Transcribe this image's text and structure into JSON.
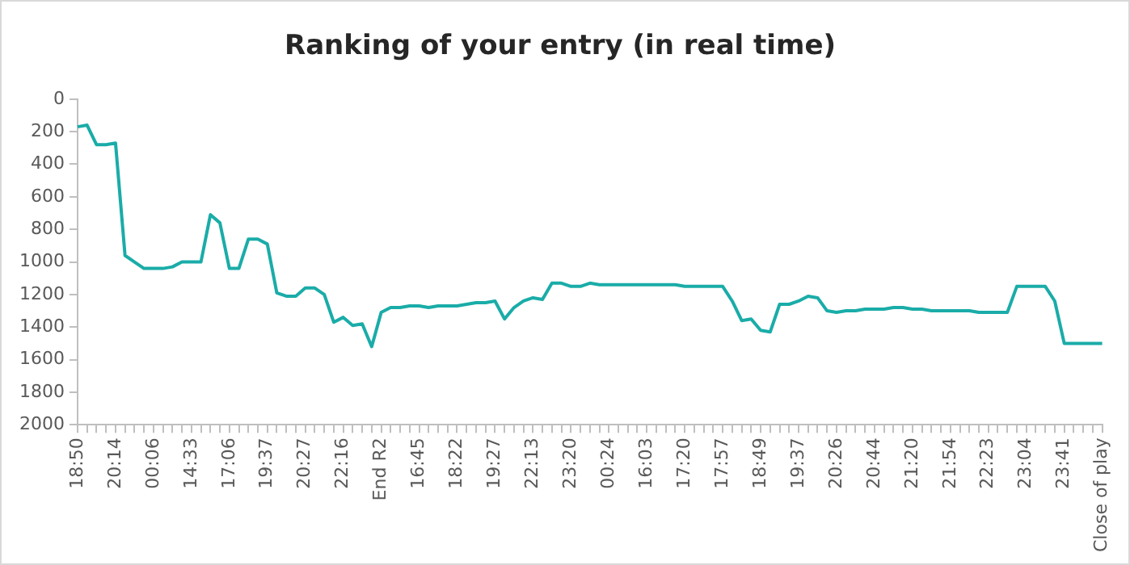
{
  "chart_data": {
    "type": "line",
    "title": "Ranking of your entry (in real time)",
    "categories": [
      "18:50",
      null,
      null,
      null,
      "20:14",
      null,
      null,
      null,
      "00:06",
      null,
      null,
      null,
      "14:33",
      null,
      null,
      null,
      "17:06",
      null,
      null,
      null,
      "19:37",
      null,
      null,
      null,
      "20:27",
      null,
      null,
      null,
      "22:16",
      null,
      null,
      null,
      "End R2",
      null,
      null,
      null,
      "16:45",
      null,
      null,
      null,
      "18:22",
      null,
      null,
      null,
      "19:27",
      null,
      null,
      null,
      "22:13",
      null,
      null,
      null,
      "23:20",
      null,
      null,
      null,
      "00:24",
      null,
      null,
      null,
      "16:03",
      null,
      null,
      null,
      "17:20",
      null,
      null,
      null,
      "17:57",
      null,
      null,
      null,
      "18:49",
      null,
      null,
      null,
      "19:37",
      null,
      null,
      null,
      "20:26",
      null,
      null,
      null,
      "20:44",
      null,
      null,
      null,
      "21:20",
      null,
      null,
      null,
      "21:54",
      null,
      null,
      null,
      "22:23",
      null,
      null,
      null,
      "23:04",
      null,
      null,
      null,
      "23:41",
      null,
      null,
      null,
      "Close of play"
    ],
    "series": [
      {
        "color": "#1aaca8",
        "values": [
          170,
          160,
          280,
          280,
          270,
          960,
          1000,
          1040,
          1040,
          1040,
          1030,
          1000,
          1000,
          1000,
          710,
          760,
          1040,
          1040,
          860,
          860,
          890,
          1190,
          1210,
          1210,
          1160,
          1160,
          1200,
          1370,
          1340,
          1390,
          1380,
          1520,
          1310,
          1280,
          1280,
          1270,
          1270,
          1280,
          1270,
          1270,
          1270,
          1260,
          1250,
          1250,
          1240,
          1350,
          1280,
          1240,
          1220,
          1230,
          1130,
          1130,
          1150,
          1150,
          1130,
          1140,
          1140,
          1140,
          1140,
          1140,
          1140,
          1140,
          1140,
          1140,
          1150,
          1150,
          1150,
          1150,
          1150,
          1240,
          1360,
          1350,
          1420,
          1430,
          1260,
          1260,
          1240,
          1210,
          1220,
          1300,
          1310,
          1300,
          1300,
          1290,
          1290,
          1290,
          1280,
          1280,
          1290,
          1290,
          1300,
          1300,
          1300,
          1300,
          1300,
          1310,
          1310,
          1310,
          1310,
          1150,
          1150,
          1150,
          1150,
          1240,
          1500,
          1500,
          1500,
          1500,
          1500
        ]
      }
    ],
    "ylim": [
      2000,
      0
    ],
    "yticks": [
      0,
      200,
      400,
      600,
      800,
      1000,
      1200,
      1400,
      1600,
      1800,
      2000
    ],
    "grid": false,
    "legend": false,
    "marker": "none",
    "line_style": "solid"
  }
}
